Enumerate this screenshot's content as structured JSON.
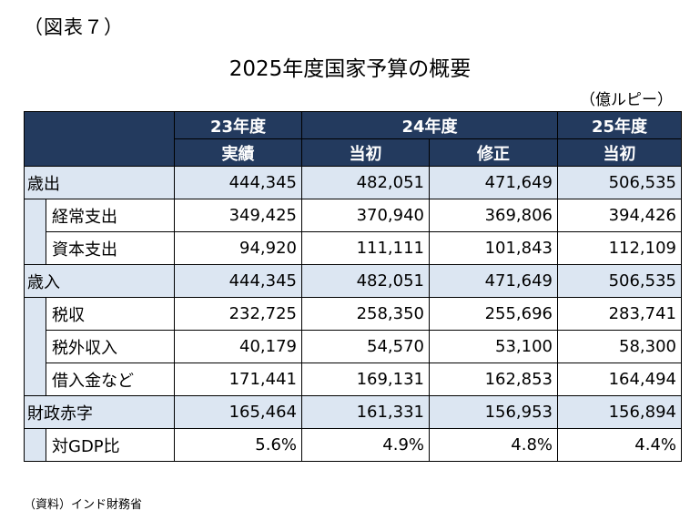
{
  "figure_label": "（図表７）",
  "title": "2025年度国家予算の概要",
  "unit": "（億ルピー）",
  "header": {
    "fy23": "23年度",
    "fy24": "24年度",
    "fy25": "25年度",
    "fy23_actual": "実績",
    "fy24_initial": "当初",
    "fy24_revised": "修正",
    "fy25_initial": "当初"
  },
  "rows": [
    {
      "label": "歳出",
      "level": 0,
      "values": [
        "444,345",
        "482,051",
        "471,649",
        "506,535"
      ]
    },
    {
      "label": "経常支出",
      "level": 1,
      "values": [
        "349,425",
        "370,940",
        "369,806",
        "394,426"
      ]
    },
    {
      "label": "資本支出",
      "level": 1,
      "values": [
        "94,920",
        "111,111",
        "101,843",
        "112,109"
      ]
    },
    {
      "label": "歳入",
      "level": 0,
      "values": [
        "444,345",
        "482,051",
        "471,649",
        "506,535"
      ]
    },
    {
      "label": "税収",
      "level": 1,
      "values": [
        "232,725",
        "258,350",
        "255,696",
        "283,741"
      ]
    },
    {
      "label": "税外収入",
      "level": 1,
      "values": [
        "40,179",
        "54,570",
        "53,100",
        "58,300"
      ]
    },
    {
      "label": "借入金など",
      "level": 1,
      "values": [
        "171,441",
        "169,131",
        "162,853",
        "164,494"
      ]
    },
    {
      "label": "財政赤字",
      "level": 0,
      "values": [
        "165,464",
        "161,331",
        "156,953",
        "156,894"
      ]
    },
    {
      "label": "対GDP比",
      "level": 1,
      "values": [
        "5.6%",
        "4.9%",
        "4.8%",
        "4.4%"
      ]
    }
  ],
  "source": "（資料）インド財務省",
  "colors": {
    "header_bg": "#233a5e",
    "header_text": "#ffffff",
    "category_row_bg": "#dce6f2"
  }
}
